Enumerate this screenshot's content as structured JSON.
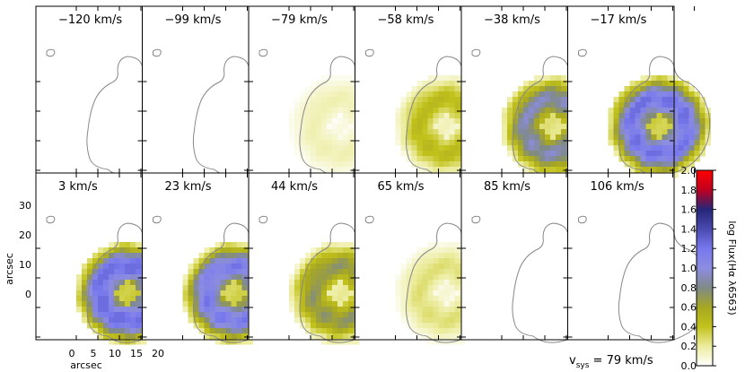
{
  "panels": [
    {
      "label": "−120 km/s",
      "intensity": 0.0
    },
    {
      "label": "−99 km/s",
      "intensity": 0.0
    },
    {
      "label": "−79 km/s",
      "intensity": 0.12
    },
    {
      "label": "−58 km/s",
      "intensity": 0.35
    },
    {
      "label": "−38 km/s",
      "intensity": 0.7
    },
    {
      "label": "−17 km/s",
      "intensity": 0.95
    },
    {
      "label": "3 km/s",
      "intensity": 1.0
    },
    {
      "label": "23 km/s",
      "intensity": 0.9
    },
    {
      "label": "44 km/s",
      "intensity": 0.55
    },
    {
      "label": "65 km/s",
      "intensity": 0.2
    },
    {
      "label": "85 km/s",
      "intensity": 0.0
    },
    {
      "label": "106 km/s",
      "intensity": 0.0
    }
  ],
  "axes": {
    "xlabel": "arcsec",
    "ylabel": "arcsec",
    "xticks": [
      "0",
      "5",
      "10",
      "15",
      "20"
    ],
    "yticks": [
      "0",
      "10",
      "20",
      "30"
    ]
  },
  "colorbar": {
    "label": "log Flux(Hα λ6563)",
    "ticks": [
      "0.0",
      "0.2",
      "0.4",
      "0.6",
      "0.8",
      "1.0",
      "1.2",
      "1.4",
      "1.6",
      "1.8",
      "2.0"
    ],
    "range": [
      0.0,
      2.0
    ],
    "stops": [
      "#ffffff",
      "#ecec9e",
      "#c2c21c",
      "#a7a722",
      "#7f8a88",
      "#8c8ce2",
      "#7878ee",
      "#4a4ab0",
      "#252578",
      "#c00020",
      "#ff0000"
    ]
  },
  "vsys": {
    "prefix": "v",
    "sub": "sys",
    "suffix": " = 79 km/s"
  },
  "colors": {
    "contour": "#888888",
    "frame": "#000000"
  }
}
